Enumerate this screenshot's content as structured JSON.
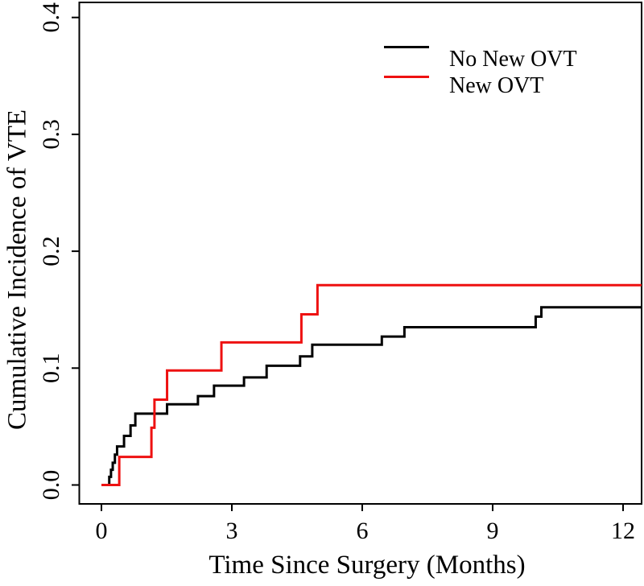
{
  "figure": {
    "background": "#ffffff",
    "axis_color": "#000000",
    "tick_label_color": "#000000"
  },
  "chart_data": {
    "type": "line",
    "subtype": "step-function-cumulative-incidence",
    "title": "",
    "xlabel": "Time Since Surgery (Months)",
    "ylabel": "Cumulative Incidence of VTE",
    "xlim": [
      0,
      12.43
    ],
    "ylim": [
      0,
      0.416
    ],
    "xticks": [
      0,
      3,
      6,
      9,
      12
    ],
    "ytick_labels": [
      "0.0",
      "0.1",
      "0.2",
      "0.3",
      "0.4"
    ],
    "grid": false,
    "legend": {
      "position": "top-right",
      "entries": [
        {
          "label": "No New OVT",
          "color": "#000000"
        },
        {
          "label": "New OVT",
          "color": "#ee1111"
        }
      ]
    },
    "series": [
      {
        "name": "No New OVT",
        "color": "#000000",
        "start": [
          0,
          0
        ],
        "end_x": 12.43,
        "steps": [
          [
            0.18,
            0.007
          ],
          [
            0.22,
            0.013
          ],
          [
            0.26,
            0.019
          ],
          [
            0.31,
            0.026
          ],
          [
            0.36,
            0.033
          ],
          [
            0.52,
            0.042
          ],
          [
            0.67,
            0.051
          ],
          [
            0.78,
            0.061
          ],
          [
            1.51,
            0.069
          ],
          [
            2.22,
            0.076
          ],
          [
            2.59,
            0.085
          ],
          [
            3.28,
            0.092
          ],
          [
            3.8,
            0.102
          ],
          [
            4.57,
            0.11
          ],
          [
            4.85,
            0.12
          ],
          [
            6.45,
            0.127
          ],
          [
            6.97,
            0.135
          ],
          [
            9.99,
            0.144
          ],
          [
            10.12,
            0.152
          ]
        ]
      },
      {
        "name": "New OVT",
        "color": "#ee1111",
        "start": [
          0,
          0
        ],
        "end_x": 12.43,
        "steps": [
          [
            0.41,
            0.024
          ],
          [
            1.15,
            0.049
          ],
          [
            1.22,
            0.073
          ],
          [
            1.51,
            0.098
          ],
          [
            2.76,
            0.122
          ],
          [
            4.6,
            0.146
          ],
          [
            4.97,
            0.171
          ]
        ]
      }
    ]
  }
}
